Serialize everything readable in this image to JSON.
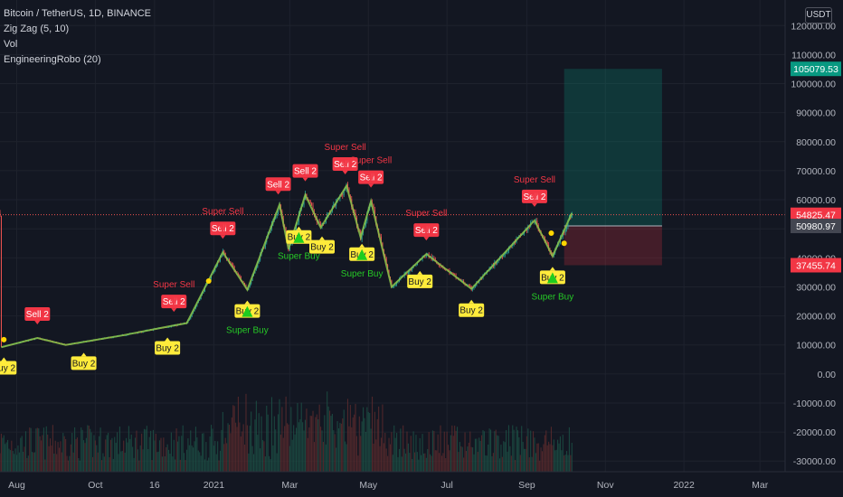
{
  "header": {
    "symbol": "Bitcoin / TetherUS, 1D, BINANCE",
    "indicators": [
      "Zig Zag (5, 10)",
      "Vol",
      "EngineeringRobo (20)"
    ],
    "currency": "USDT"
  },
  "colors": {
    "background": "#131722",
    "up": "#26a69a",
    "down": "#ef5350",
    "buy_label": "#ffeb3b",
    "sell_label": "#f23645",
    "super_buy_text": "#26c926",
    "super_sell_text": "#f23645",
    "zigzag": "#8bc34a"
  },
  "price_axis": {
    "ticks": [
      "120000.00",
      "110000.00",
      "100000.00",
      "90000.00",
      "80000.00",
      "70000.00",
      "60000.00",
      "50000.00",
      "40000.00",
      "30000.00",
      "20000.00",
      "10000.00",
      "0.00",
      "-10000.00",
      "-20000.00",
      "-30000.00"
    ],
    "tick_values": [
      120000,
      110000,
      100000,
      90000,
      80000,
      70000,
      60000,
      50000,
      40000,
      30000,
      20000,
      10000,
      0,
      -10000,
      -20000,
      -30000
    ],
    "markers": [
      {
        "label": "105079.53",
        "value": 105079.53,
        "color": "#089981",
        "kind": "target"
      },
      {
        "label": "54825.47",
        "value": 54825.47,
        "color": "#f23645",
        "kind": "last"
      },
      {
        "label": "50980.97",
        "value": 50980.97,
        "color": "#434651",
        "kind": "entry"
      },
      {
        "label": "37455.74",
        "value": 37455.74,
        "color": "#f23645",
        "kind": "stop"
      }
    ]
  },
  "time_axis": {
    "labels": [
      "Aug",
      "Oct",
      "16",
      "2021",
      "Mar",
      "May",
      "Jul",
      "Sep",
      "Nov",
      "2022",
      "Mar"
    ]
  },
  "chart_data": {
    "type": "line",
    "zigzag": [
      {
        "x": "Jul 20, 2020",
        "y": 9200
      },
      {
        "x": "Aug 17, 2020",
        "y": 12400
      },
      {
        "x": "Sep 8, 2020",
        "y": 10000
      },
      {
        "x": "Oct 21, 2020",
        "y": 13200
      },
      {
        "x": "Nov 26, 2020",
        "y": 16300
      },
      {
        "x": "Dec 11, 2020",
        "y": 17500
      },
      {
        "x": "Jan 8, 2021",
        "y": 41900
      },
      {
        "x": "Jan 27, 2021",
        "y": 29000
      },
      {
        "x": "Feb 21, 2021",
        "y": 58300
      },
      {
        "x": "Feb 28, 2021",
        "y": 43000
      },
      {
        "x": "Mar 13, 2021",
        "y": 61700
      },
      {
        "x": "Mar 25, 2021",
        "y": 50400
      },
      {
        "x": "Apr 14, 2021",
        "y": 64800
      },
      {
        "x": "Apr 25, 2021",
        "y": 47000
      },
      {
        "x": "May 3, 2021",
        "y": 59500
      },
      {
        "x": "May 19, 2021",
        "y": 30000
      },
      {
        "x": "Jun 15, 2021",
        "y": 41300
      },
      {
        "x": "Jul 20, 2021",
        "y": 29300
      },
      {
        "x": "Sep 7, 2021",
        "y": 52900
      },
      {
        "x": "Sep 21, 2021",
        "y": 40600
      },
      {
        "x": "Oct 6, 2021",
        "y": 55400
      }
    ],
    "signals": [
      {
        "x": "Jul 22, 2020",
        "label": "Buy 2",
        "type": "buy"
      },
      {
        "x": "Aug 17, 2020",
        "label": "Sell 2",
        "type": "sell"
      },
      {
        "x": "Sep 22, 2020",
        "label": "Buy 2",
        "type": "buy"
      },
      {
        "x": "Nov 26, 2020",
        "label": "Buy 2",
        "type": "buy"
      },
      {
        "x": "Dec 1, 2020",
        "label": "Sell 2",
        "type": "sell",
        "super": "Super Sell"
      },
      {
        "x": "Jan 8, 2021",
        "label": "Sell 2",
        "type": "sell",
        "super": "Super Sell"
      },
      {
        "x": "Jan 27, 2021",
        "label": "Buy 2",
        "type": "buy",
        "super": "Super Buy"
      },
      {
        "x": "Feb 20, 2021",
        "label": "Sell 2",
        "type": "sell"
      },
      {
        "x": "Mar 13, 2021",
        "label": "Sell 2",
        "type": "sell"
      },
      {
        "x": "Mar 8, 2021",
        "label": "Buy 2",
        "type": "buy",
        "super": "Super Buy"
      },
      {
        "x": "Mar 26, 2021",
        "label": "Buy 2",
        "type": "buy"
      },
      {
        "x": "Apr 13, 2021",
        "label": "Sell 2",
        "type": "sell",
        "super": "Super Sell"
      },
      {
        "x": "Apr 26, 2021",
        "label": "Buy 2",
        "type": "buy",
        "super": "Super Buy"
      },
      {
        "x": "May 3, 2021",
        "label": "Sell 2",
        "type": "sell",
        "super": "Super Sell"
      },
      {
        "x": "Jun 10, 2021",
        "label": "Buy 2",
        "type": "buy"
      },
      {
        "x": "Jun 15, 2021",
        "label": "Sell 2",
        "type": "sell",
        "super": "Super Sell"
      },
      {
        "x": "Jul 20, 2021",
        "label": "Buy 2",
        "type": "buy"
      },
      {
        "x": "Sep 7, 2021",
        "label": "Sell 2",
        "type": "sell",
        "super": "Super Sell"
      },
      {
        "x": "Sep 21, 2021",
        "label": "Buy 2",
        "type": "buy",
        "super": "Super Buy"
      }
    ],
    "position": {
      "entry": 50980.97,
      "target": 105079.53,
      "stop": 37455.74,
      "start": "Sep 30, 2021",
      "end": "Dec 15, 2021"
    },
    "last_price": 54825.47,
    "ylim": [
      -33000,
      125000
    ],
    "grid": true
  }
}
